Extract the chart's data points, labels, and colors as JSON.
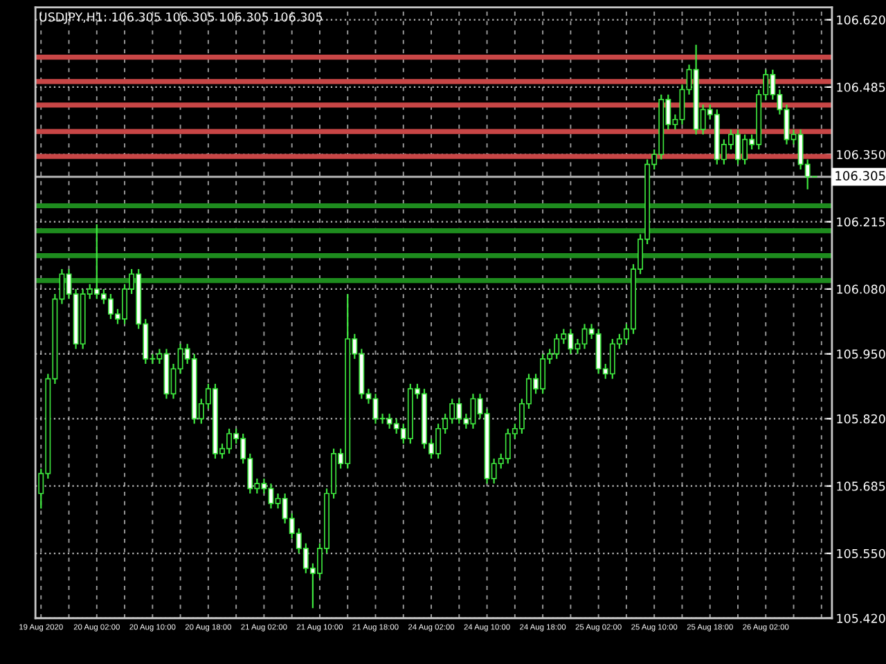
{
  "chart_data": {
    "type": "candlestick",
    "title": "USDJPY,H1: 106.305 106.305 106.305 106.305",
    "categories": [
      "19 Aug 2020",
      null,
      null,
      null,
      null,
      null,
      null,
      null,
      "20 Aug 02:00",
      null,
      null,
      null,
      null,
      null,
      null,
      null,
      "20 Aug 10:00",
      null,
      null,
      null,
      null,
      null,
      null,
      null,
      "20 Aug 18:00",
      null,
      null,
      null,
      null,
      null,
      null,
      null,
      "21 Aug 02:00",
      null,
      null,
      null,
      null,
      null,
      null,
      null,
      "21 Aug 10:00",
      null,
      null,
      null,
      null,
      null,
      null,
      null,
      "21 Aug 18:00",
      null,
      null,
      null,
      null,
      null,
      null,
      null,
      "24 Aug 02:00",
      null,
      null,
      null,
      null,
      null,
      null,
      null,
      "24 Aug 10:00",
      null,
      null,
      null,
      null,
      null,
      null,
      null,
      "24 Aug 18:00",
      null,
      null,
      null,
      null,
      null,
      null,
      null,
      "25 Aug 02:00",
      null,
      null,
      null,
      null,
      null,
      null,
      null,
      "25 Aug 10:00",
      null,
      null,
      null,
      null,
      null,
      null,
      null,
      "25 Aug 18:00",
      null,
      null,
      null,
      null,
      null,
      null,
      null,
      "26 Aug 02:00",
      null,
      null,
      null,
      null,
      null,
      null,
      null
    ],
    "ohlc": [
      [
        105.67,
        105.72,
        105.64,
        105.71
      ],
      [
        105.71,
        105.91,
        105.7,
        105.9
      ],
      [
        105.9,
        106.07,
        105.89,
        106.06
      ],
      [
        106.06,
        106.12,
        106.05,
        106.11
      ],
      [
        106.11,
        106.12,
        106.06,
        106.07
      ],
      [
        106.07,
        106.08,
        105.96,
        105.97
      ],
      [
        105.97,
        106.08,
        105.96,
        106.07
      ],
      [
        106.07,
        106.09,
        106.06,
        106.08
      ],
      [
        106.08,
        106.21,
        106.06,
        106.07
      ],
      [
        106.07,
        106.08,
        106.05,
        106.06
      ],
      [
        106.06,
        106.07,
        106.02,
        106.03
      ],
      [
        106.03,
        106.04,
        106.01,
        106.02
      ],
      [
        106.02,
        106.09,
        106.01,
        106.08
      ],
      [
        106.08,
        106.12,
        106.07,
        106.11
      ],
      [
        106.11,
        106.12,
        106.0,
        106.01
      ],
      [
        106.01,
        106.02,
        105.93,
        105.94
      ],
      [
        105.94,
        105.95,
        105.93,
        105.94
      ],
      [
        105.94,
        105.96,
        105.93,
        105.95
      ],
      [
        105.95,
        105.96,
        105.86,
        105.87
      ],
      [
        105.87,
        105.93,
        105.86,
        105.92
      ],
      [
        105.92,
        105.97,
        105.91,
        105.96
      ],
      [
        105.96,
        105.97,
        105.93,
        105.94
      ],
      [
        105.94,
        105.95,
        105.81,
        105.82
      ],
      [
        105.82,
        105.86,
        105.81,
        105.85
      ],
      [
        105.85,
        105.89,
        105.84,
        105.88
      ],
      [
        105.88,
        105.89,
        105.74,
        105.75
      ],
      [
        105.75,
        105.77,
        105.74,
        105.76
      ],
      [
        105.76,
        105.8,
        105.75,
        105.79
      ],
      [
        105.79,
        105.8,
        105.77,
        105.78
      ],
      [
        105.78,
        105.79,
        105.73,
        105.74
      ],
      [
        105.74,
        105.75,
        105.67,
        105.68
      ],
      [
        105.68,
        105.7,
        105.67,
        105.69
      ],
      [
        105.69,
        105.7,
        105.67,
        105.68
      ],
      [
        105.68,
        105.69,
        105.64,
        105.65
      ],
      [
        105.65,
        105.67,
        105.64,
        105.66
      ],
      [
        105.66,
        105.67,
        105.61,
        105.62
      ],
      [
        105.62,
        105.63,
        105.58,
        105.59
      ],
      [
        105.59,
        105.6,
        105.55,
        105.56
      ],
      [
        105.56,
        105.57,
        105.51,
        105.52
      ],
      [
        105.52,
        105.53,
        105.44,
        105.51
      ],
      [
        105.51,
        105.57,
        105.5,
        105.56
      ],
      [
        105.56,
        105.68,
        105.55,
        105.67
      ],
      [
        105.67,
        105.76,
        105.66,
        105.75
      ],
      [
        105.75,
        105.76,
        105.72,
        105.73
      ],
      [
        105.73,
        106.07,
        105.72,
        105.98
      ],
      [
        105.98,
        105.99,
        105.94,
        105.95
      ],
      [
        105.95,
        105.96,
        105.86,
        105.87
      ],
      [
        105.87,
        105.88,
        105.85,
        105.86
      ],
      [
        105.86,
        105.87,
        105.81,
        105.82
      ],
      [
        105.82,
        105.83,
        105.81,
        105.82
      ],
      [
        105.82,
        105.83,
        105.8,
        105.81
      ],
      [
        105.81,
        105.82,
        105.79,
        105.8
      ],
      [
        105.8,
        105.81,
        105.77,
        105.78
      ],
      [
        105.78,
        105.89,
        105.77,
        105.88
      ],
      [
        105.88,
        105.89,
        105.86,
        105.87
      ],
      [
        105.87,
        105.88,
        105.76,
        105.77
      ],
      [
        105.77,
        105.78,
        105.74,
        105.75
      ],
      [
        105.75,
        105.81,
        105.74,
        105.8
      ],
      [
        105.8,
        105.83,
        105.79,
        105.82
      ],
      [
        105.82,
        105.86,
        105.81,
        105.85
      ],
      [
        105.85,
        105.86,
        105.81,
        105.82
      ],
      [
        105.82,
        105.83,
        105.8,
        105.81
      ],
      [
        105.81,
        105.87,
        105.8,
        105.86
      ],
      [
        105.86,
        105.87,
        105.82,
        105.83
      ],
      [
        105.83,
        105.84,
        105.69,
        105.7
      ],
      [
        105.7,
        105.74,
        105.69,
        105.73
      ],
      [
        105.73,
        105.75,
        105.72,
        105.74
      ],
      [
        105.74,
        105.8,
        105.73,
        105.79
      ],
      [
        105.79,
        105.81,
        105.78,
        105.8
      ],
      [
        105.8,
        105.86,
        105.79,
        105.85
      ],
      [
        105.85,
        105.91,
        105.84,
        105.9
      ],
      [
        105.9,
        105.91,
        105.87,
        105.88
      ],
      [
        105.88,
        105.95,
        105.87,
        105.94
      ],
      [
        105.94,
        105.96,
        105.93,
        105.95
      ],
      [
        105.95,
        105.99,
        105.94,
        105.98
      ],
      [
        105.98,
        106.0,
        105.97,
        105.99
      ],
      [
        105.99,
        106.0,
        105.95,
        105.96
      ],
      [
        105.96,
        105.98,
        105.95,
        105.97
      ],
      [
        105.97,
        106.01,
        105.96,
        106.0
      ],
      [
        106.0,
        106.01,
        105.98,
        105.99
      ],
      [
        105.99,
        106.0,
        105.91,
        105.92
      ],
      [
        105.92,
        105.93,
        105.9,
        105.91
      ],
      [
        105.91,
        105.98,
        105.9,
        105.97
      ],
      [
        105.97,
        105.99,
        105.96,
        105.98
      ],
      [
        105.98,
        106.01,
        105.97,
        106.0
      ],
      [
        106.0,
        106.13,
        105.99,
        106.12
      ],
      [
        106.12,
        106.19,
        106.11,
        106.18
      ],
      [
        106.18,
        106.34,
        106.17,
        106.33
      ],
      [
        106.33,
        106.36,
        106.32,
        106.35
      ],
      [
        106.35,
        106.47,
        106.34,
        106.46
      ],
      [
        106.46,
        106.47,
        106.4,
        106.41
      ],
      [
        106.41,
        106.43,
        106.4,
        106.42
      ],
      [
        106.42,
        106.49,
        106.41,
        106.48
      ],
      [
        106.48,
        106.53,
        106.47,
        106.52
      ],
      [
        106.52,
        106.57,
        106.39,
        106.4
      ],
      [
        106.4,
        106.45,
        106.39,
        106.44
      ],
      [
        106.44,
        106.45,
        106.42,
        106.43
      ],
      [
        106.43,
        106.44,
        106.33,
        106.34
      ],
      [
        106.34,
        106.38,
        106.33,
        106.37
      ],
      [
        106.37,
        106.4,
        106.36,
        106.39
      ],
      [
        106.39,
        106.4,
        106.33,
        106.34
      ],
      [
        106.34,
        106.39,
        106.33,
        106.38
      ],
      [
        106.38,
        106.39,
        106.36,
        106.37
      ],
      [
        106.37,
        106.48,
        106.36,
        106.47
      ],
      [
        106.47,
        106.52,
        106.46,
        106.51
      ],
      [
        106.51,
        106.52,
        106.46,
        106.47
      ],
      [
        106.47,
        106.48,
        106.43,
        106.44
      ],
      [
        106.44,
        106.45,
        106.37,
        106.38
      ],
      [
        106.38,
        106.4,
        106.37,
        106.39
      ],
      [
        106.39,
        106.4,
        106.32,
        106.33
      ],
      [
        106.33,
        106.34,
        106.28,
        106.305
      ],
      [
        106.305,
        106.305,
        106.305,
        106.305
      ]
    ],
    "ylim": [
      105.42,
      106.645
    ],
    "yticks": [
      {
        "value": 106.62,
        "label": "106.620"
      },
      {
        "value": 106.485,
        "label": "106.485"
      },
      {
        "value": 106.35,
        "label": "106.350"
      },
      {
        "value": 106.215,
        "label": "106.215"
      },
      {
        "value": 106.08,
        "label": "106.080"
      },
      {
        "value": 105.95,
        "label": "105.950"
      },
      {
        "value": 105.82,
        "label": "105.820"
      },
      {
        "value": 105.685,
        "label": "105.685"
      },
      {
        "value": 105.55,
        "label": "105.550"
      },
      {
        "value": 105.42,
        "label": "105.420"
      }
    ],
    "ref_lines": [
      {
        "axis": "y",
        "value": 106.545,
        "color": "#c84646"
      },
      {
        "axis": "y",
        "value": 106.496,
        "color": "#c84646"
      },
      {
        "axis": "y",
        "value": 106.449,
        "color": "#c84646"
      },
      {
        "axis": "y",
        "value": 106.396,
        "color": "#c84646"
      },
      {
        "axis": "y",
        "value": 106.346,
        "color": "#c84646"
      },
      {
        "axis": "y",
        "value": 106.305,
        "label": "106.305",
        "color": "#a8a8a8"
      },
      {
        "axis": "y",
        "value": 106.247,
        "color": "#1e8c1e"
      },
      {
        "axis": "y",
        "value": 106.197,
        "color": "#1e8c1e"
      },
      {
        "axis": "y",
        "value": 106.147,
        "color": "#1e8c1e"
      },
      {
        "axis": "y",
        "value": 106.097,
        "color": "#1e8c1e"
      }
    ],
    "grid": true
  }
}
